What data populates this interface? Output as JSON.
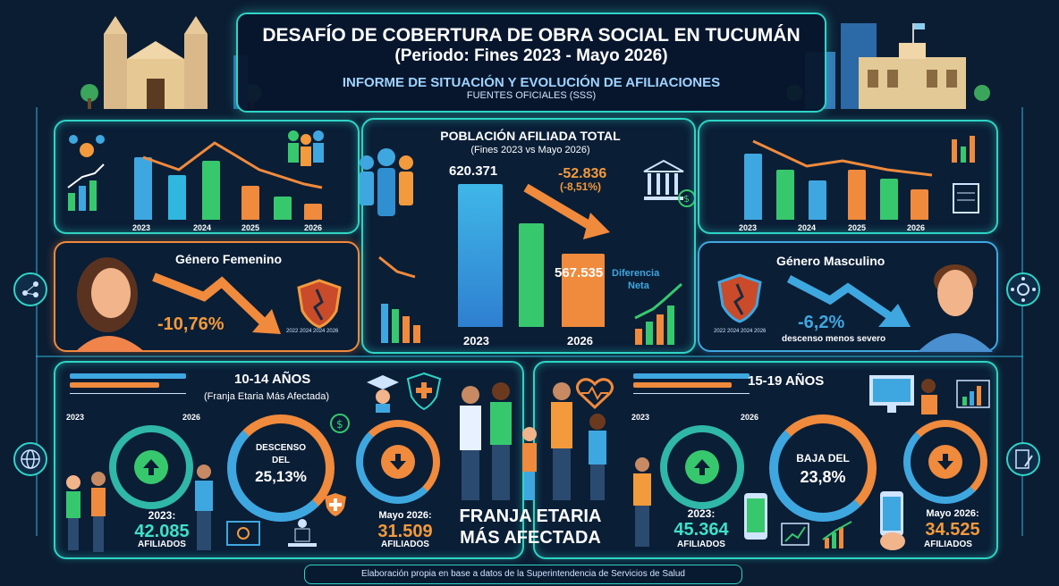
{
  "header": {
    "title": "DESAFÍO DE COBERTURA DE OBRA SOCIAL EN TUCUMÁN",
    "period": "(Periodo: Fines 2023 - Mayo 2026)",
    "subtitle": "INFORME DE SITUACIÓN Y EVOLUCIÓN DE AFILIACIONES",
    "sources": "FUENTES OFICIALES (SSS)"
  },
  "top_left_chart": {
    "years": [
      "2023",
      "2024",
      "2025",
      "2026"
    ]
  },
  "top_right_chart": {
    "years": [
      "2023",
      "2024",
      "2025",
      "2026"
    ]
  },
  "center": {
    "title": "POBLACIÓN AFILIADA TOTAL",
    "subtitle": "(Fines 2023 vs Mayo 2026)",
    "value_2023": "620.371",
    "value_2026": "567.535",
    "diff": "-52.836",
    "diff_pct": "(-8,51%)",
    "diff_label_1": "Diferencia",
    "diff_label_2": "Neta",
    "year_a": "2023",
    "year_b": "2026"
  },
  "female": {
    "title": "Género Femenino",
    "value": "-10,76%",
    "mini_years": "2022 2024 2024 2026"
  },
  "male": {
    "title": "Género Masculino",
    "value": "-6,2%",
    "note": "descenso menos severo",
    "mini_years": "2022 2024 2024 2026"
  },
  "age_10_14": {
    "title": "10-14 AÑOS",
    "subtitle": "(Franja Etaria Más Afectada)",
    "year_a": "2023",
    "year_b": "2026",
    "ring_line1": "DESCENSO",
    "ring_line2": "DEL",
    "ring_value": "25,13%",
    "left_label": "2023:",
    "left_value": "42.085",
    "left_unit": "AFILIADOS",
    "right_label": "Mayo 2026:",
    "right_value": "31.509",
    "right_unit": "AFILIADOS"
  },
  "age_15_19": {
    "title": "15-19 AÑOS",
    "year_a": "2023",
    "year_b": "2026",
    "ring_line1": "BAJA DEL",
    "ring_value": "23,8%",
    "left_label": "2023:",
    "left_value": "45.364",
    "left_unit": "AFILIADOS",
    "right_label": "Mayo 2026:",
    "right_value": "34.525",
    "right_unit": "AFILIADOS"
  },
  "center_bottom": {
    "line1": "FRANJA ETARIA",
    "line2": "MÁS AFECTADA"
  },
  "footer": "Elaboración propia en base a datos de la Superintendencia de Servicios de Salud",
  "colors": {
    "teal": "#2fd4c6",
    "orange": "#f39a3c",
    "blue": "#3fa7e0",
    "green": "#37c86e"
  }
}
